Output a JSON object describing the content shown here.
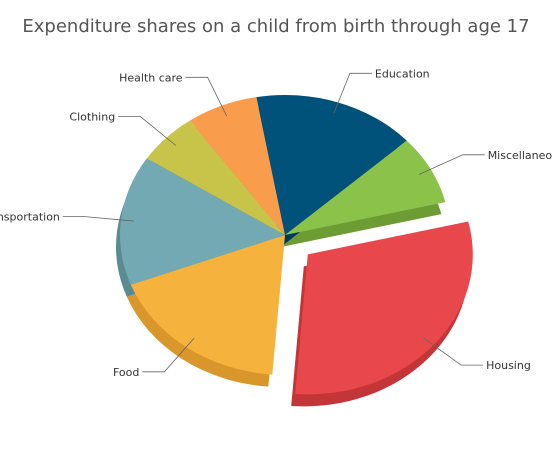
{
  "chart_data": {
    "type": "pie",
    "title": "Expenditure shares on a child from birth through age 17",
    "categories": [
      "Education",
      "Miscellaneous",
      "Housing",
      "Food",
      "Transportation",
      "Clothing",
      "Health care"
    ],
    "values": [
      16,
      8,
      30,
      18,
      15,
      6,
      7
    ],
    "unit": "%",
    "exploded": "Housing",
    "colors": [
      "#00527a",
      "#8bc34a",
      "#e8474b",
      "#f5b33d",
      "#72a9b3",
      "#c8c44a",
      "#f99d4c"
    ],
    "side_colors": [
      "#003a58",
      "#6c9c33",
      "#c43538",
      "#d9962a",
      "#5a8b93",
      "#a8a436",
      "#dd8439"
    ],
    "legend": "none"
  }
}
